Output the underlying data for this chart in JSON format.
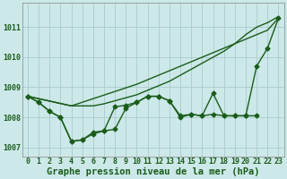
{
  "xlabel": "Graphe pression niveau de la mer (hPa)",
  "background_color": "#cce8e8",
  "grid_color": "#aacccc",
  "line_color": "#1a5c1a",
  "x": [
    0,
    1,
    2,
    3,
    4,
    5,
    6,
    7,
    8,
    9,
    10,
    11,
    12,
    13,
    14,
    15,
    16,
    17,
    18,
    19,
    20,
    21,
    22,
    23
  ],
  "line_smooth1": [
    1008.7,
    1008.62,
    1008.54,
    1008.46,
    1008.38,
    1008.5,
    1008.62,
    1008.74,
    1008.86,
    1008.98,
    1009.1,
    1009.25,
    1009.4,
    1009.55,
    1009.7,
    1009.85,
    1010.0,
    1010.15,
    1010.3,
    1010.45,
    1010.6,
    1010.75,
    1010.9,
    1011.3
  ],
  "line_smooth2": [
    1008.7,
    1008.62,
    1008.54,
    1008.46,
    1008.38,
    1008.38,
    1008.38,
    1008.45,
    1008.55,
    1008.65,
    1008.75,
    1008.9,
    1009.05,
    1009.2,
    1009.4,
    1009.6,
    1009.8,
    1010.0,
    1010.2,
    1010.45,
    1010.75,
    1011.0,
    1011.15,
    1011.35
  ],
  "line_zigzag": [
    1008.7,
    1008.5,
    1008.2,
    1008.0,
    1007.2,
    1007.25,
    1007.5,
    1007.55,
    1008.35,
    1008.4,
    1008.5,
    1008.7,
    1008.7,
    1008.55,
    1008.05,
    1008.1,
    1008.05,
    1008.1,
    1008.05,
    1008.05,
    1008.05,
    1009.7,
    1010.3,
    1011.3
  ],
  "line_bowl": [
    1008.7,
    1008.5,
    1008.2,
    1008.0,
    1007.2,
    1007.25,
    1007.45,
    1007.55,
    1007.6,
    1008.3,
    1008.5,
    1008.7,
    1008.7,
    1008.55,
    1008.0,
    1008.1,
    1008.05,
    1008.8,
    1008.05,
    1008.05,
    1008.05,
    1008.05,
    null,
    null
  ],
  "ylim": [
    1006.7,
    1011.8
  ],
  "yticks": [
    1007,
    1008,
    1009,
    1010,
    1011
  ],
  "xticks": [
    0,
    1,
    2,
    3,
    4,
    5,
    6,
    7,
    8,
    9,
    10,
    11,
    12,
    13,
    14,
    15,
    16,
    17,
    18,
    19,
    20,
    21,
    22,
    23
  ],
  "marker_size": 2.5,
  "line_width": 1.0,
  "xlabel_fontsize": 7.5,
  "tick_fontsize": 6.0
}
